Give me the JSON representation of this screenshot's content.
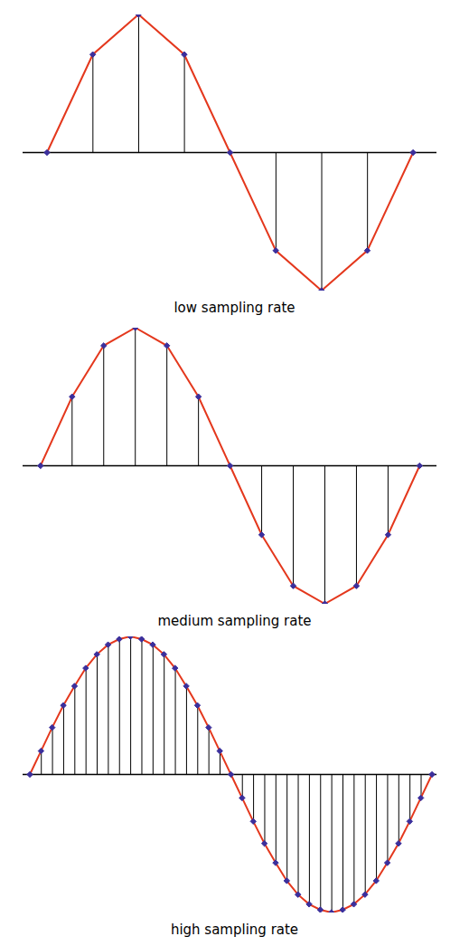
{
  "chart_data": [
    {
      "type": "stem",
      "title": "low sampling rate",
      "color": "#e4381d",
      "marker": "diamond",
      "tick_labels": false,
      "x": [
        0,
        45,
        90,
        135,
        180,
        225,
        270,
        315,
        360
      ],
      "values": [
        0,
        0.71,
        1,
        0.71,
        0,
        -0.71,
        -1,
        -0.71,
        0
      ],
      "xlim": [
        -24,
        383
      ],
      "ylim": [
        -1,
        1
      ]
    },
    {
      "type": "stem",
      "title": "medium sampling rate",
      "color": "#e4381d",
      "marker": "diamond",
      "tick_labels": false,
      "x": [
        0,
        30,
        60,
        90,
        120,
        150,
        180,
        210,
        240,
        270,
        300,
        330,
        360
      ],
      "values": [
        0,
        0.5,
        0.87,
        1,
        0.87,
        0.5,
        0,
        -0.5,
        -0.87,
        -1,
        -0.87,
        -0.5,
        0
      ],
      "xlim": [
        -17,
        376
      ],
      "ylim": [
        -1,
        1
      ]
    },
    {
      "type": "stem",
      "title": "high sampling rate",
      "color": "#e4381d",
      "marker": "diamond",
      "tick_labels": false,
      "x": [
        0,
        10,
        20,
        30,
        40,
        50,
        60,
        70,
        80,
        90,
        100,
        110,
        120,
        130,
        140,
        150,
        160,
        170,
        180,
        190,
        200,
        210,
        220,
        230,
        240,
        250,
        260,
        270,
        280,
        290,
        300,
        310,
        320,
        330,
        340,
        350,
        360
      ],
      "values": [
        0,
        0.17,
        0.34,
        0.5,
        0.64,
        0.77,
        0.87,
        0.94,
        0.98,
        1,
        0.98,
        0.94,
        0.87,
        0.77,
        0.64,
        0.5,
        0.34,
        0.17,
        0,
        -0.17,
        -0.34,
        -0.5,
        -0.64,
        -0.77,
        -0.87,
        -0.94,
        -0.98,
        -1,
        -0.98,
        -0.94,
        -0.87,
        -0.77,
        -0.64,
        -0.5,
        -0.34,
        -0.17,
        0
      ],
      "xlim": [
        -6.5,
        364
      ],
      "ylim": [
        -1,
        1
      ]
    }
  ]
}
